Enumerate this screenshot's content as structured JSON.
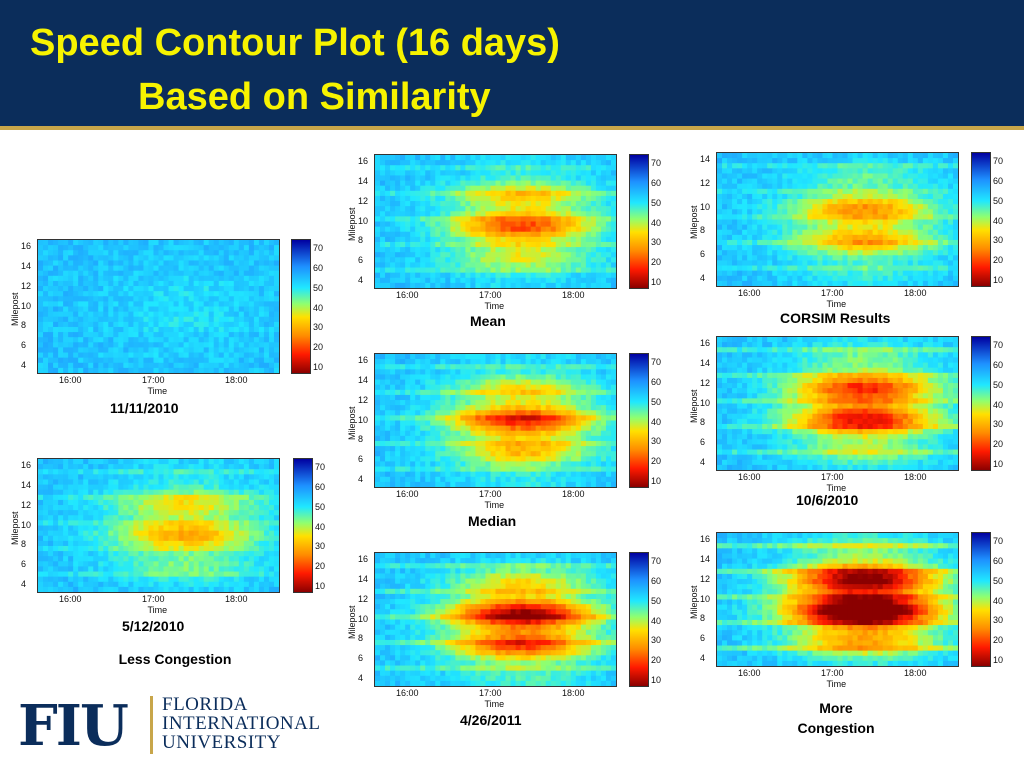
{
  "header": {
    "title_line1": "Speed Contour Plot (16 days)",
    "title_line2": "Based on Similarity",
    "background": "#0b2d5b",
    "title_color": "#f7f300",
    "accent": "#c8a64a"
  },
  "axes": {
    "y_label": "Milepost",
    "x_label": "Time",
    "x_ticks": [
      "16:00",
      "17:00",
      "18:00"
    ],
    "y_ticks": [
      "4",
      "6",
      "8",
      "10",
      "12",
      "14",
      "16"
    ],
    "colorbar_ticks": [
      "70",
      "60",
      "50",
      "40",
      "30",
      "20",
      "10"
    ]
  },
  "panels": [
    {
      "id": "p-11-11-2010",
      "caption": "11/11/2010",
      "level": 0.05
    },
    {
      "id": "p-5-12-2010",
      "caption": "5/12/2010",
      "level": 0.35
    },
    {
      "id": "p-mean",
      "caption": "Mean",
      "level": 0.45
    },
    {
      "id": "p-median",
      "caption": "Median",
      "level": 0.5
    },
    {
      "id": "p-4-26-2011",
      "caption": "4/26/2011",
      "level": 0.65
    },
    {
      "id": "p-corsim",
      "caption": "CORSIM Results",
      "level": 0.4
    },
    {
      "id": "p-10-6-2010",
      "caption": "10/6/2010",
      "level": 0.6
    },
    {
      "id": "p-more",
      "caption": "",
      "level": 0.9
    }
  ],
  "notes": {
    "less_congestion": "Less Congestion",
    "more_congestion_line1": "More",
    "more_congestion_line2": "Congestion"
  },
  "logo": {
    "mark": "FIU",
    "line1": "FLORIDA",
    "line2": "INTERNATIONAL",
    "line3": "UNIVERSITY"
  }
}
